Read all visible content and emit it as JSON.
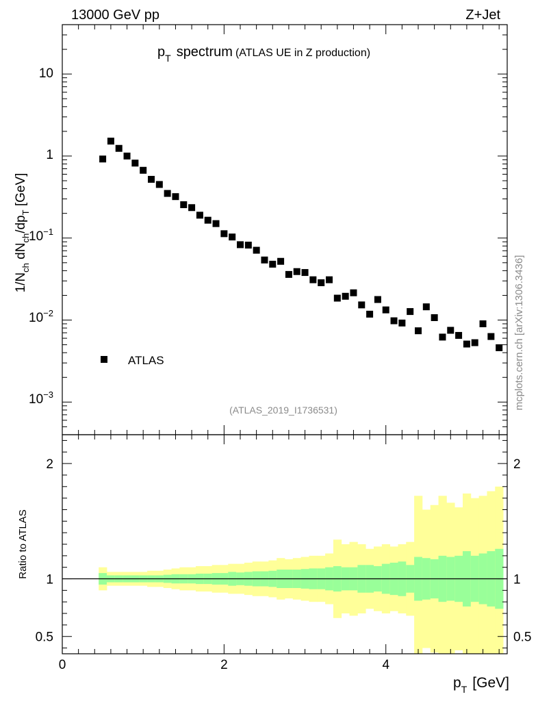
{
  "header": {
    "left": "13000 GeV pp",
    "right": "Z+Jet"
  },
  "watermark": "mcplots.cern.ch [arXiv:1306.3436]",
  "analysis_tag": "(ATLAS_2019_I1736531)",
  "chart_data": [
    {
      "type": "scatter",
      "title_main": "p",
      "title_sub": "T",
      "title_rest": "spectrum",
      "title_note": "(ATLAS UE in Z production)",
      "ylabel": "1/N_ch dN_ch/dp_T [GeV]",
      "yscale": "log",
      "ylim": [
        0.0004,
        40
      ],
      "xlim": [
        0,
        5.5
      ],
      "ytick_labels": {
        "t10": "10",
        "t1": "1",
        "tm1": "10",
        "tm1e": "−1",
        "tm2": "10",
        "tm2e": "−2",
        "tm3": "10",
        "tm3e": "−3"
      },
      "legend": {
        "label": "ATLAS",
        "placement": "middle-left"
      },
      "series": [
        {
          "name": "ATLAS",
          "x": [
            0.5,
            0.6,
            0.7,
            0.8,
            0.9,
            1.0,
            1.1,
            1.2,
            1.3,
            1.4,
            1.5,
            1.6,
            1.7,
            1.8,
            1.9,
            2.0,
            2.1,
            2.2,
            2.3,
            2.4,
            2.5,
            2.6,
            2.7,
            2.8,
            2.9,
            3.0,
            3.1,
            3.2,
            3.3,
            3.4,
            3.5,
            3.6,
            3.7,
            3.8,
            3.9,
            4.0,
            4.1,
            4.2,
            4.3,
            4.4,
            4.5,
            4.6,
            4.7,
            4.8,
            4.9,
            5.0,
            5.1,
            5.2,
            5.3,
            5.4
          ],
          "y": [
            0.92,
            1.52,
            1.24,
            1.0,
            0.82,
            0.67,
            0.52,
            0.45,
            0.35,
            0.32,
            0.255,
            0.235,
            0.19,
            0.165,
            0.15,
            0.113,
            0.103,
            0.083,
            0.082,
            0.071,
            0.054,
            0.048,
            0.052,
            0.036,
            0.039,
            0.038,
            0.031,
            0.0285,
            0.031,
            0.0185,
            0.0195,
            0.0215,
            0.0153,
            0.0118,
            0.0178,
            0.0133,
            0.0098,
            0.0092,
            0.0127,
            0.0074,
            0.0145,
            0.0107,
            0.0062,
            0.0075,
            0.0065,
            0.0051,
            0.0053,
            0.009,
            0.0063,
            0.0046
          ]
        }
      ]
    },
    {
      "type": "area",
      "ylabel": "Ratio to ATLAS",
      "xlabel_main": "p",
      "xlabel_sub": "T",
      "xlabel_unit": "[GeV]",
      "ylim": [
        0.35,
        2.25
      ],
      "xlim": [
        0,
        5.5
      ],
      "xtick_labels": [
        "0",
        "2",
        "4"
      ],
      "xtick_values": [
        0,
        2,
        4
      ],
      "ytick_labels": [
        "0.5",
        "1",
        "2"
      ],
      "ytick_values": [
        0.5,
        1,
        2
      ],
      "colors": {
        "inner_band": "#99ff99",
        "outer_band": "#ffff99",
        "reference": "#000000"
      },
      "bins": {
        "edges": [
          0.45,
          0.55,
          0.65,
          0.75,
          0.85,
          0.95,
          1.05,
          1.15,
          1.25,
          1.35,
          1.45,
          1.55,
          1.65,
          1.75,
          1.85,
          1.95,
          2.05,
          2.15,
          2.25,
          2.35,
          2.45,
          2.55,
          2.65,
          2.75,
          2.85,
          2.95,
          3.05,
          3.15,
          3.25,
          3.35,
          3.45,
          3.55,
          3.65,
          3.75,
          3.85,
          3.95,
          4.05,
          4.15,
          4.25,
          4.35,
          4.45,
          4.55,
          4.65,
          4.75,
          4.85,
          4.95,
          5.05,
          5.15,
          5.25,
          5.35,
          5.45
        ],
        "inner_half_width": [
          0.05,
          0.03,
          0.03,
          0.03,
          0.03,
          0.03,
          0.03,
          0.03,
          0.035,
          0.04,
          0.04,
          0.04,
          0.045,
          0.045,
          0.05,
          0.05,
          0.06,
          0.055,
          0.06,
          0.065,
          0.065,
          0.07,
          0.08,
          0.08,
          0.08,
          0.085,
          0.09,
          0.09,
          0.1,
          0.11,
          0.1,
          0.1,
          0.12,
          0.12,
          0.11,
          0.13,
          0.14,
          0.15,
          0.12,
          0.19,
          0.18,
          0.17,
          0.2,
          0.19,
          0.2,
          0.24,
          0.2,
          0.22,
          0.24,
          0.26
        ],
        "outer_half_width": [
          0.1,
          0.06,
          0.06,
          0.06,
          0.06,
          0.06,
          0.07,
          0.07,
          0.08,
          0.09,
          0.1,
          0.1,
          0.11,
          0.11,
          0.12,
          0.12,
          0.13,
          0.13,
          0.14,
          0.15,
          0.15,
          0.16,
          0.18,
          0.17,
          0.18,
          0.19,
          0.2,
          0.2,
          0.22,
          0.34,
          0.3,
          0.32,
          0.3,
          0.26,
          0.28,
          0.3,
          0.28,
          0.3,
          0.32,
          0.72,
          0.6,
          0.64,
          0.72,
          0.66,
          0.62,
          0.74,
          0.7,
          0.72,
          0.76,
          0.8
        ]
      }
    }
  ]
}
